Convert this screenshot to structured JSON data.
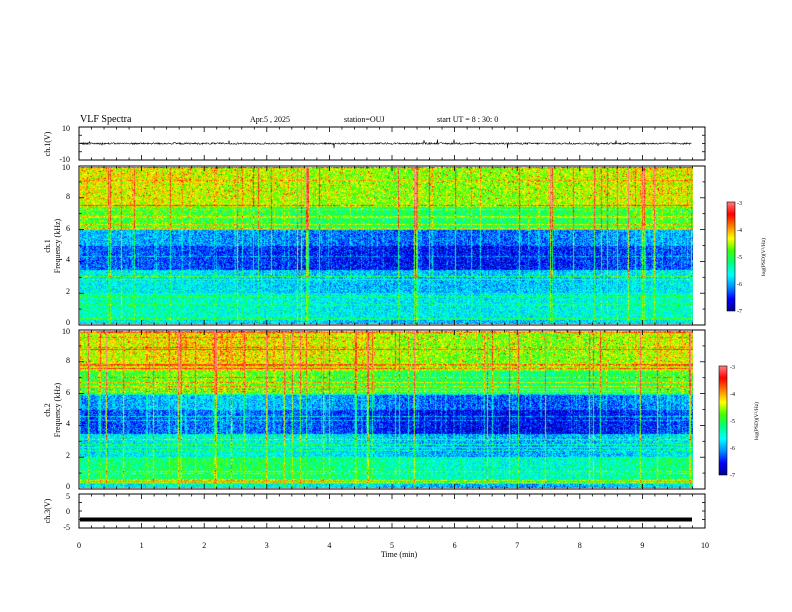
{
  "header": {
    "title": "VLF Spectra",
    "date": "Apr.5 , 2025",
    "station": "station=OUJ",
    "start_ut": "start UT = 8 : 30: 0"
  },
  "colors": {
    "colormap": [
      "#000090",
      "#0000ff",
      "#0090ff",
      "#00ffff",
      "#00ff80",
      "#40ff00",
      "#ffff00",
      "#ff8000",
      "#ff0000",
      "#ff8080"
    ],
    "trace": "#000000"
  },
  "chart_data": [
    {
      "type": "line",
      "name": "ch1-waveform",
      "ylabel": "ch.1(V)",
      "ylim": [
        -10,
        10
      ],
      "yticks": [
        "10",
        "-10"
      ],
      "xlim": [
        0,
        10
      ],
      "baseline": 0,
      "amplitude": 1,
      "grid": false
    },
    {
      "type": "heatmap",
      "name": "ch1-spectrogram",
      "ylabel_line1": "ch.1",
      "ylabel_line2": "Frequency (kHz)",
      "ylim": [
        0,
        10
      ],
      "yticks": [
        "0",
        "2",
        "4",
        "6",
        "8",
        "10"
      ],
      "xlim": [
        0,
        9.8
      ],
      "colorbar": {
        "range": [
          -7,
          -3
        ],
        "ticks": [
          "-3",
          "-4",
          "-5",
          "-6",
          "-7"
        ],
        "label": "log(PSD)(V²/Hz)"
      }
    },
    {
      "type": "heatmap",
      "name": "ch2-spectrogram",
      "ylabel_line1": "ch.2",
      "ylabel_line2": "Frequency (kHz)",
      "ylim": [
        0,
        10
      ],
      "yticks": [
        "0",
        "2",
        "4",
        "6",
        "8",
        "10"
      ],
      "xlim": [
        0,
        9.8
      ],
      "colorbar": {
        "range": [
          -7,
          -3
        ],
        "ticks": [
          "-3",
          "-4",
          "-5",
          "-6",
          "-7"
        ],
        "label": "log(PSD)(V²/Hz)"
      }
    },
    {
      "type": "line",
      "name": "ch3-waveform",
      "ylabel": "ch.3(V)",
      "ylim": [
        -5,
        5
      ],
      "yticks": [
        "5",
        "0",
        "-5"
      ],
      "xlim": [
        0,
        10
      ],
      "baseline": -2.5,
      "grid": false
    }
  ],
  "xaxis": {
    "label": "Time (min)",
    "ticks": [
      "0",
      "1",
      "2",
      "3",
      "4",
      "5",
      "6",
      "7",
      "8",
      "9",
      "10"
    ],
    "range": [
      0,
      10
    ]
  }
}
